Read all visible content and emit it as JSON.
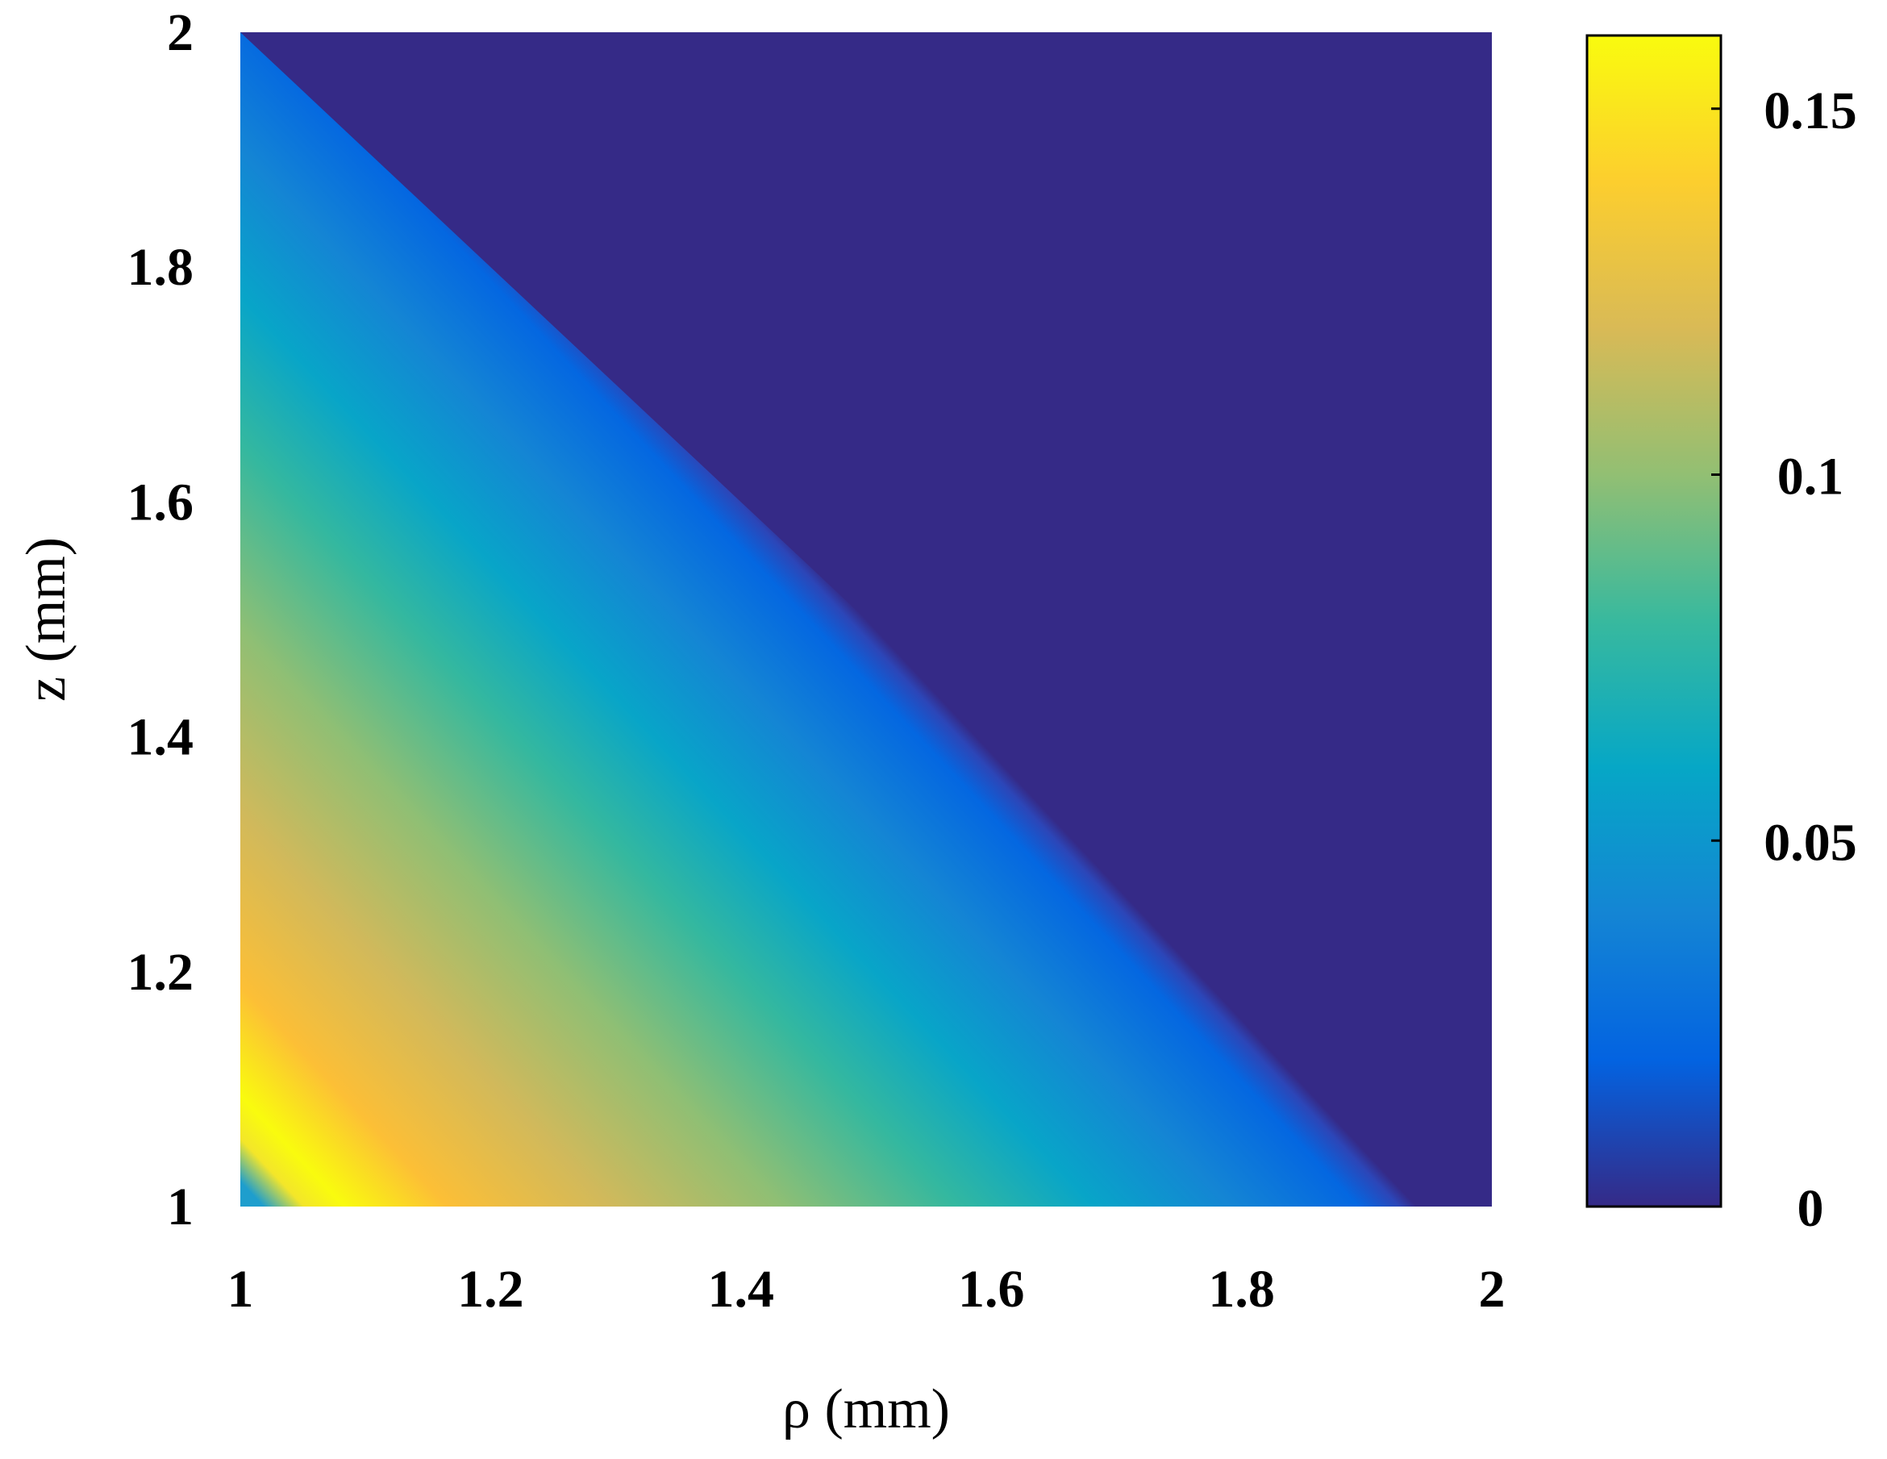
{
  "chart_data": {
    "type": "heatmap",
    "title": "",
    "xlabel": "ρ (mm)",
    "ylabel": "z (mm)",
    "xlim": [
      1,
      2
    ],
    "ylim": [
      1,
      2
    ],
    "x_ticks": [
      "1",
      "1.2",
      "1.4",
      "1.6",
      "1.8",
      "2"
    ],
    "y_ticks": [
      "1",
      "1.2",
      "1.4",
      "1.6",
      "1.8",
      "2"
    ],
    "colorbar": {
      "range": [
        0,
        0.16
      ],
      "ticks": [
        "0",
        "0.05",
        "0.1",
        "0.15"
      ],
      "placement": "right",
      "colormap": "parula"
    },
    "grid": false,
    "field": {
      "description_of_shape": "value decreases from bottom-left corner to zero along the anti-diagonal",
      "zero_line": "rho + z = 3",
      "peak_value": 0.16,
      "peak_location_rho_plus_z": 2.2
    }
  },
  "colors": {
    "parula_stops": [
      "#352a87",
      "#0363e1",
      "#1485d4",
      "#06a7c6",
      "#38b99e",
      "#92bf73",
      "#d9ba56",
      "#fcce2e",
      "#f9fb0e"
    ]
  }
}
